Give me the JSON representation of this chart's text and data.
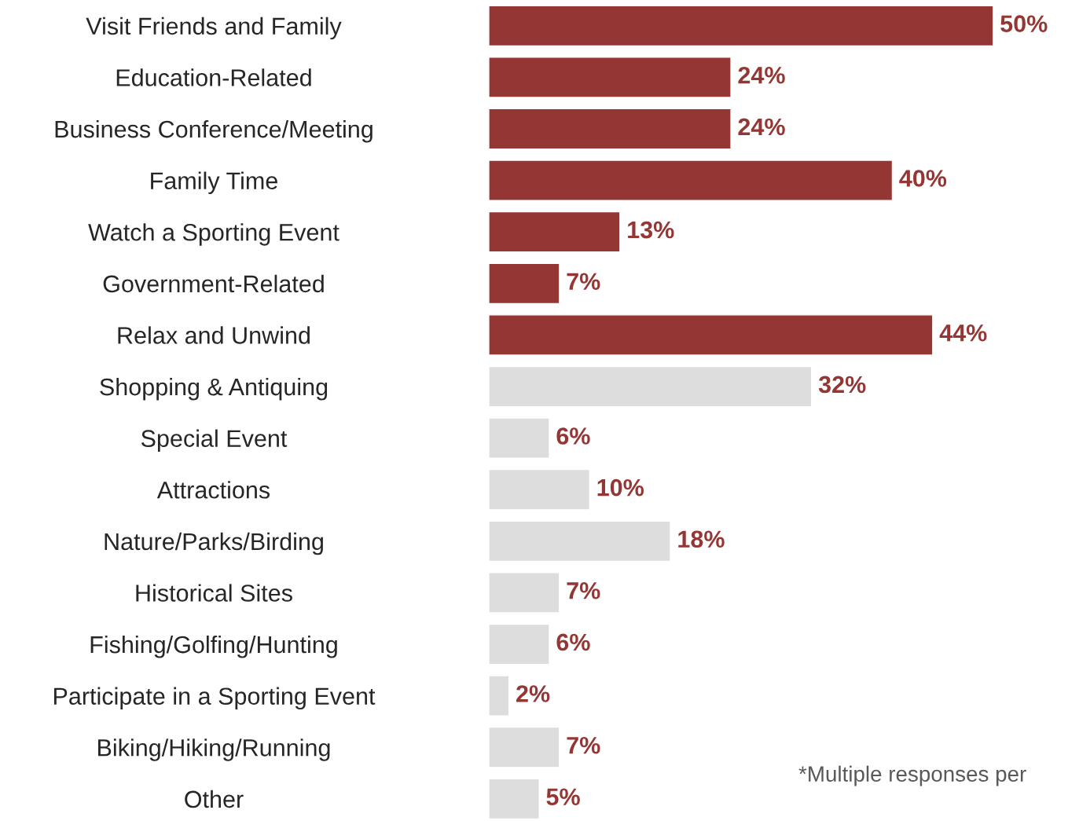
{
  "chart_data": {
    "type": "bar",
    "orientation": "horizontal",
    "categories": [
      "Visit Friends and Family",
      "Education-Related",
      "Business Conference/Meeting",
      "Family Time",
      "Watch a Sporting Event",
      "Government-Related",
      "Relax and Unwind",
      "Shopping & Antiquing",
      "Special Event",
      "Attractions",
      "Nature/Parks/Birding",
      "Historical Sites",
      "Fishing/Golfing/Hunting",
      "Participate in a Sporting Event",
      "Biking/Hiking/Running",
      "Other"
    ],
    "values": [
      50,
      24,
      24,
      40,
      13,
      7,
      44,
      32,
      6,
      10,
      18,
      7,
      6,
      2,
      7,
      5
    ],
    "colors": [
      "#943634",
      "#943634",
      "#943634",
      "#943634",
      "#943634",
      "#943634",
      "#943634",
      "#dddddd",
      "#dddddd",
      "#dddddd",
      "#dddddd",
      "#dddddd",
      "#dddddd",
      "#dddddd",
      "#dddddd",
      "#dddddd"
    ],
    "value_labels": [
      "50%",
      "24%",
      "24%",
      "40%",
      "13%",
      "7%",
      "44%",
      "32%",
      "6%",
      "10%",
      "18%",
      "7%",
      "6%",
      "2%",
      "7%",
      "5%"
    ],
    "annotations": [
      "*Multiple responses per"
    ],
    "grid": false,
    "legend": false
  }
}
